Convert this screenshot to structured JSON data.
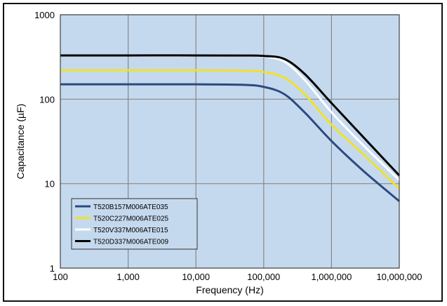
{
  "chart_data": {
    "type": "line",
    "xlabel": "Frequency (Hz)",
    "ylabel": "Capacitance (µF)",
    "x_scale": "log",
    "y_scale": "log",
    "xlim": [
      100,
      10000000
    ],
    "ylim": [
      1,
      1000
    ],
    "x_ticks": [
      "100",
      "1,000",
      "10,000",
      "100,000",
      "1,000,000",
      "10,000,000"
    ],
    "y_ticks": [
      "1",
      "10",
      "100",
      "1000"
    ],
    "grid": true,
    "legend_position": "bottom-left",
    "colors": {
      "plot_bg": "#c5d9ee",
      "grid": "#888888"
    },
    "series": [
      {
        "name": "T520B157M006ATE035",
        "color": "#2b4a7e",
        "x": [
          100,
          1000,
          10000,
          50000,
          100000,
          200000,
          400000,
          1000000,
          3000000,
          10000000
        ],
        "y": [
          150,
          150,
          150,
          148,
          140,
          115,
          70,
          32,
          14,
          6.2
        ]
      },
      {
        "name": "T520C227M006ATE025",
        "color": "#f0e12a",
        "x": [
          100,
          1000,
          10000,
          50000,
          100000,
          200000,
          400000,
          1000000,
          3000000,
          10000000
        ],
        "y": [
          220,
          220,
          220,
          218,
          210,
          180,
          115,
          50,
          22,
          8.7
        ]
      },
      {
        "name": "T520V337M006ATE015",
        "color": "#ffffff",
        "x": [
          100,
          1000,
          10000,
          50000,
          100000,
          200000,
          400000,
          1000000,
          3000000,
          10000000
        ],
        "y": [
          330,
          330,
          330,
          328,
          320,
          280,
          170,
          70,
          28,
          11
        ]
      },
      {
        "name": "T520D337M006ATE009",
        "color": "#000000",
        "x": [
          100,
          1000,
          10000,
          50000,
          100000,
          200000,
          400000,
          1000000,
          3000000,
          10000000
        ],
        "y": [
          330,
          330,
          330,
          329,
          325,
          300,
          200,
          90,
          35,
          12.5
        ]
      }
    ]
  }
}
